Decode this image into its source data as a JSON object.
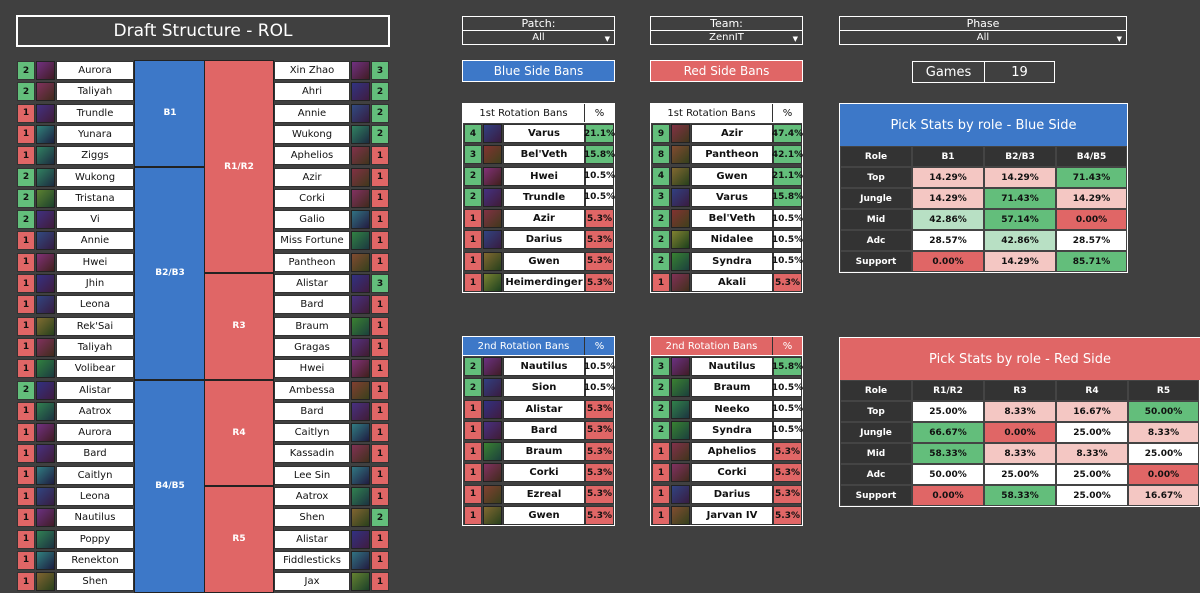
{
  "title": "Draft Structure - ROL",
  "colors": {
    "green": "#63be7b",
    "lightgreen": "#b8e0c4",
    "red": "#e06666",
    "lightred": "#f4c7c3",
    "blue": "#3d78c8",
    "white": "#ffffff"
  },
  "draft": {
    "blue_blocks": [
      {
        "label": "B1",
        "start": 0,
        "rows": 5
      },
      {
        "label": "B2/B3",
        "start": 5,
        "rows": 10
      },
      {
        "label": "B4/B5",
        "start": 15,
        "rows": 10
      }
    ],
    "red_blocks": [
      {
        "label": "R1/R2",
        "start": 0,
        "rows": 10
      },
      {
        "label": "R3",
        "start": 10,
        "rows": 5
      },
      {
        "label": "R4",
        "start": 15,
        "rows": 5
      },
      {
        "label": "R5",
        "start": 20,
        "rows": 5
      }
    ],
    "blue": [
      {
        "n": "2",
        "c": "Aurora"
      },
      {
        "n": "2",
        "c": "Taliyah"
      },
      {
        "n": "1",
        "c": "Trundle"
      },
      {
        "n": "1",
        "c": "Yunara"
      },
      {
        "n": "1",
        "c": "Ziggs"
      },
      {
        "n": "2",
        "c": "Wukong"
      },
      {
        "n": "2",
        "c": "Tristana"
      },
      {
        "n": "2",
        "c": "Vi"
      },
      {
        "n": "1",
        "c": "Annie"
      },
      {
        "n": "1",
        "c": "Hwei"
      },
      {
        "n": "1",
        "c": "Jhin"
      },
      {
        "n": "1",
        "c": "Leona"
      },
      {
        "n": "1",
        "c": "Rek'Sai"
      },
      {
        "n": "1",
        "c": "Taliyah"
      },
      {
        "n": "1",
        "c": "Volibear"
      },
      {
        "n": "2",
        "c": "Alistar"
      },
      {
        "n": "1",
        "c": "Aatrox"
      },
      {
        "n": "1",
        "c": "Aurora"
      },
      {
        "n": "1",
        "c": "Bard"
      },
      {
        "n": "1",
        "c": "Caitlyn"
      },
      {
        "n": "1",
        "c": "Leona"
      },
      {
        "n": "1",
        "c": "Nautilus"
      },
      {
        "n": "1",
        "c": "Poppy"
      },
      {
        "n": "1",
        "c": "Renekton"
      },
      {
        "n": "1",
        "c": "Shen"
      }
    ],
    "red": [
      {
        "n": "3",
        "c": "Xin Zhao"
      },
      {
        "n": "2",
        "c": "Ahri"
      },
      {
        "n": "2",
        "c": "Annie"
      },
      {
        "n": "2",
        "c": "Wukong"
      },
      {
        "n": "1",
        "c": "Aphelios"
      },
      {
        "n": "1",
        "c": "Azir"
      },
      {
        "n": "1",
        "c": "Corki"
      },
      {
        "n": "1",
        "c": "Galio"
      },
      {
        "n": "1",
        "c": "Miss Fortune"
      },
      {
        "n": "1",
        "c": "Pantheon"
      },
      {
        "n": "3",
        "c": "Alistar"
      },
      {
        "n": "1",
        "c": "Bard"
      },
      {
        "n": "1",
        "c": "Braum"
      },
      {
        "n": "1",
        "c": "Gragas"
      },
      {
        "n": "1",
        "c": "Hwei"
      },
      {
        "n": "1",
        "c": "Ambessa"
      },
      {
        "n": "1",
        "c": "Bard"
      },
      {
        "n": "1",
        "c": "Caitlyn"
      },
      {
        "n": "1",
        "c": "Kassadin"
      },
      {
        "n": "1",
        "c": "Lee Sin"
      },
      {
        "n": "1",
        "c": "Aatrox"
      },
      {
        "n": "2",
        "c": "Shen"
      },
      {
        "n": "1",
        "c": "Alistar"
      },
      {
        "n": "1",
        "c": "Fiddlesticks"
      },
      {
        "n": "1",
        "c": "Jax"
      }
    ]
  },
  "filters": [
    {
      "label": "Patch:",
      "value": "All"
    },
    {
      "label": "Team:",
      "value": "ZennIT"
    },
    {
      "label": "Phase",
      "value": "All"
    }
  ],
  "blue_side_bans": "Blue Side Bans",
  "red_side_bans": "Red Side Bans",
  "games": {
    "label": "Games",
    "value": "19"
  },
  "ban_tables": [
    {
      "title": "1st Rotation Bans",
      "pct_head": "%",
      "head_color": "#ffffff",
      "rows": [
        {
          "n": "4",
          "c": "Varus",
          "p": "21.1%"
        },
        {
          "n": "3",
          "c": "Bel'Veth",
          "p": "15.8%"
        },
        {
          "n": "2",
          "c": "Hwei",
          "p": "10.5%"
        },
        {
          "n": "2",
          "c": "Trundle",
          "p": "10.5%"
        },
        {
          "n": "1",
          "c": "Azir",
          "p": "5.3%"
        },
        {
          "n": "1",
          "c": "Darius",
          "p": "5.3%"
        },
        {
          "n": "1",
          "c": "Gwen",
          "p": "5.3%"
        },
        {
          "n": "1",
          "c": "Heimerdinger",
          "p": "5.3%"
        }
      ]
    },
    {
      "title": "1st Rotation Bans",
      "pct_head": "%",
      "head_color": "#ffffff",
      "rows": [
        {
          "n": "9",
          "c": "Azir",
          "p": "47.4%"
        },
        {
          "n": "8",
          "c": "Pantheon",
          "p": "42.1%"
        },
        {
          "n": "4",
          "c": "Gwen",
          "p": "21.1%"
        },
        {
          "n": "3",
          "c": "Varus",
          "p": "15.8%"
        },
        {
          "n": "2",
          "c": "Bel'Veth",
          "p": "10.5%"
        },
        {
          "n": "2",
          "c": "Nidalee",
          "p": "10.5%"
        },
        {
          "n": "2",
          "c": "Syndra",
          "p": "10.5%"
        },
        {
          "n": "1",
          "c": "Akali",
          "p": "5.3%"
        }
      ]
    },
    {
      "title": "2nd Rotation Bans",
      "pct_head": "%",
      "head_color": "#3d78c8",
      "rows": [
        {
          "n": "2",
          "c": "Nautilus",
          "p": "10.5%"
        },
        {
          "n": "2",
          "c": "Sion",
          "p": "10.5%"
        },
        {
          "n": "1",
          "c": "Alistar",
          "p": "5.3%"
        },
        {
          "n": "1",
          "c": "Bard",
          "p": "5.3%"
        },
        {
          "n": "1",
          "c": "Braum",
          "p": "5.3%"
        },
        {
          "n": "1",
          "c": "Corki",
          "p": "5.3%"
        },
        {
          "n": "1",
          "c": "Ezreal",
          "p": "5.3%"
        },
        {
          "n": "1",
          "c": "Gwen",
          "p": "5.3%"
        }
      ]
    },
    {
      "title": "2nd Rotation Bans",
      "pct_head": "%",
      "head_color": "#e06666",
      "rows": [
        {
          "n": "3",
          "c": "Nautilus",
          "p": "15.8%"
        },
        {
          "n": "2",
          "c": "Braum",
          "p": "10.5%"
        },
        {
          "n": "2",
          "c": "Neeko",
          "p": "10.5%"
        },
        {
          "n": "2",
          "c": "Syndra",
          "p": "10.5%"
        },
        {
          "n": "1",
          "c": "Aphelios",
          "p": "5.3%"
        },
        {
          "n": "1",
          "c": "Corki",
          "p": "5.3%"
        },
        {
          "n": "1",
          "c": "Darius",
          "p": "5.3%"
        },
        {
          "n": "1",
          "c": "Jarvan IV",
          "p": "5.3%"
        }
      ]
    }
  ],
  "blue_stats": {
    "title": "Pick Stats by role - Blue Side",
    "header": [
      "Role",
      "B1",
      "B2/B3",
      "B4/B5"
    ],
    "rows": [
      [
        "Top",
        "14.29%",
        "14.29%",
        "71.43%"
      ],
      [
        "Jungle",
        "14.29%",
        "71.43%",
        "14.29%"
      ],
      [
        "Mid",
        "42.86%",
        "57.14%",
        "0.00%"
      ],
      [
        "Adc",
        "28.57%",
        "42.86%",
        "28.57%"
      ],
      [
        "Support",
        "0.00%",
        "14.29%",
        "85.71%"
      ]
    ],
    "shade": [
      [
        "lr",
        "lr",
        "g"
      ],
      [
        "lr",
        "g",
        "lr"
      ],
      [
        "lg",
        "g",
        "r"
      ],
      [
        "w",
        "lg",
        "w"
      ],
      [
        "r",
        "lr",
        "g"
      ]
    ]
  },
  "red_stats": {
    "title": "Pick Stats by role - Red Side",
    "header": [
      "Role",
      "R1/R2",
      "R3",
      "R4",
      "R5"
    ],
    "rows": [
      [
        "Top",
        "25.00%",
        "8.33%",
        "16.67%",
        "50.00%"
      ],
      [
        "Jungle",
        "66.67%",
        "0.00%",
        "25.00%",
        "8.33%"
      ],
      [
        "Mid",
        "58.33%",
        "8.33%",
        "8.33%",
        "25.00%"
      ],
      [
        "Adc",
        "50.00%",
        "25.00%",
        "25.00%",
        "0.00%"
      ],
      [
        "Support",
        "0.00%",
        "58.33%",
        "25.00%",
        "16.67%"
      ]
    ],
    "shade": [
      [
        "w",
        "lr",
        "lr",
        "g"
      ],
      [
        "g",
        "r",
        "w",
        "lr"
      ],
      [
        "g",
        "lr",
        "lr",
        "w"
      ],
      [
        "w",
        "w",
        "w",
        "r"
      ],
      [
        "r",
        "g",
        "w",
        "lr"
      ]
    ]
  }
}
